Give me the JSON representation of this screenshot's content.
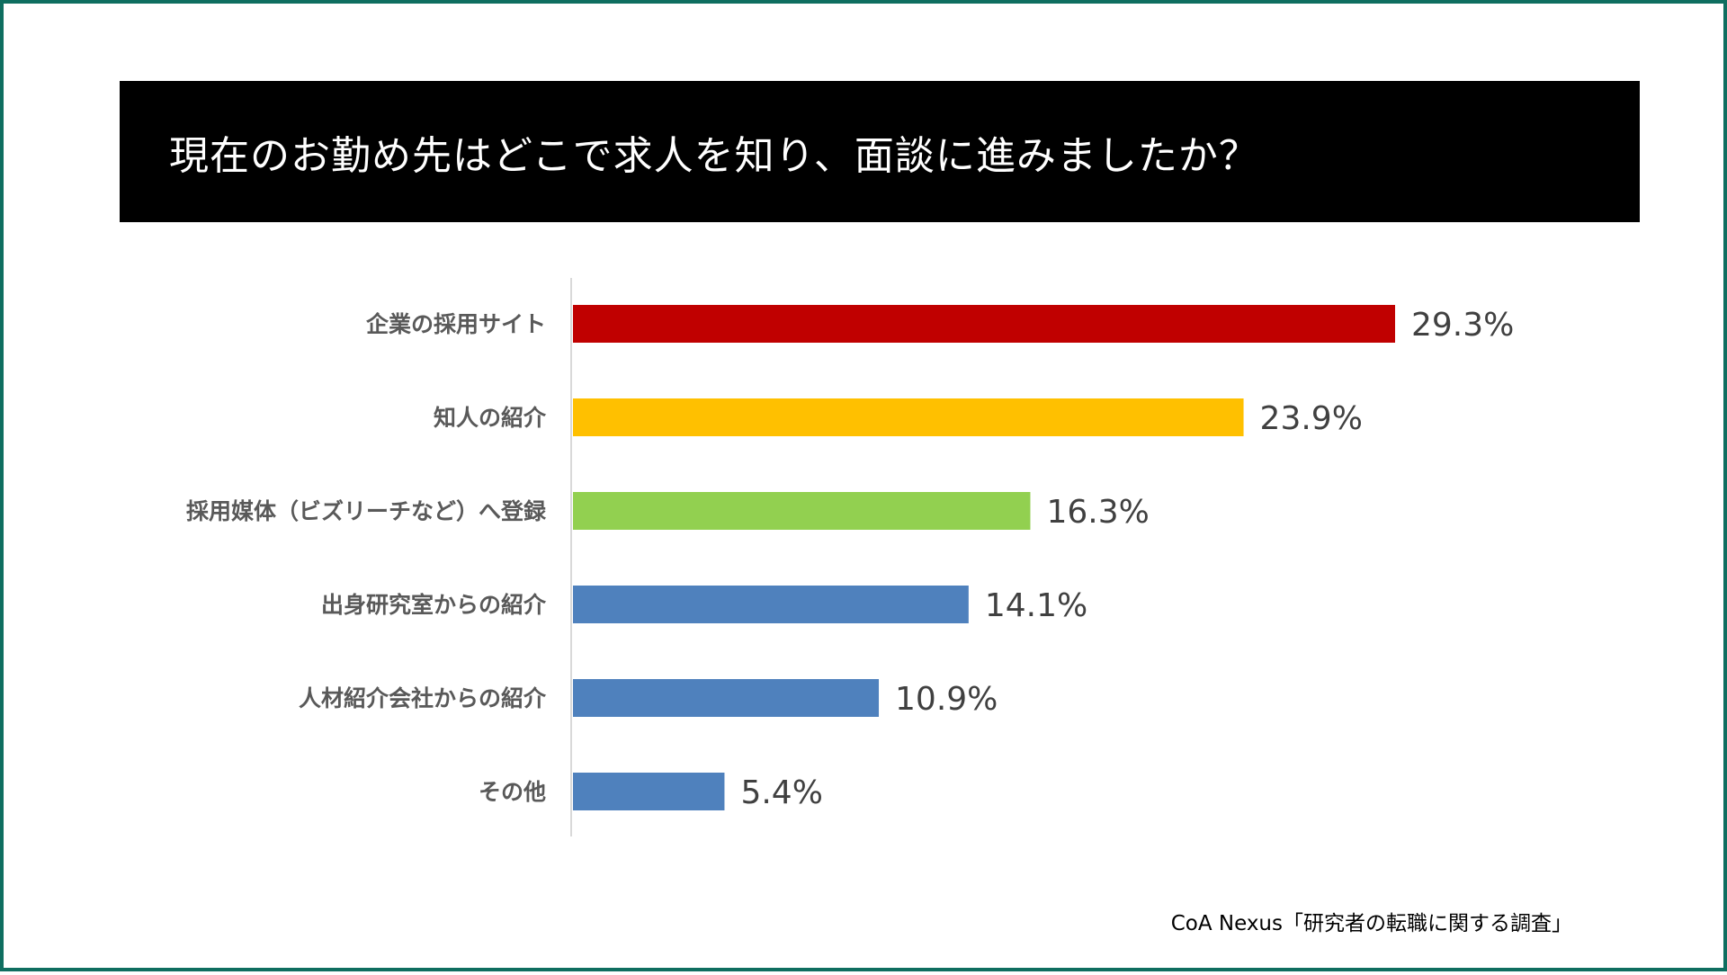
{
  "chart_data": {
    "type": "bar",
    "orientation": "horizontal",
    "title": "現在のお勤め先はどこで求人を知り、面談に進みましたか？",
    "categories": [
      "企業の採用サイト",
      "知人の紹介",
      "採用媒体（ビズリーチなど）へ登録",
      "出身研究室からの紹介",
      "人材紹介会社からの紹介",
      "その他"
    ],
    "values": [
      29.3,
      23.9,
      16.3,
      14.1,
      10.9,
      5.4
    ],
    "value_labels": [
      "29.3%",
      "23.9%",
      "16.3%",
      "14.1%",
      "10.9%",
      "5.4%"
    ],
    "bar_colors": [
      "#c00000",
      "#ffc000",
      "#92d050",
      "#4f81bd",
      "#4f81bd",
      "#4f81bd"
    ],
    "xlim": [
      0,
      29.3
    ],
    "grid": false,
    "legend": "none"
  },
  "source": "CoA Nexus「研究者の転職に関する調査」",
  "colors": {
    "frame": "#0f6e60",
    "banner": "#000000",
    "axis": "#d9d9d9"
  }
}
